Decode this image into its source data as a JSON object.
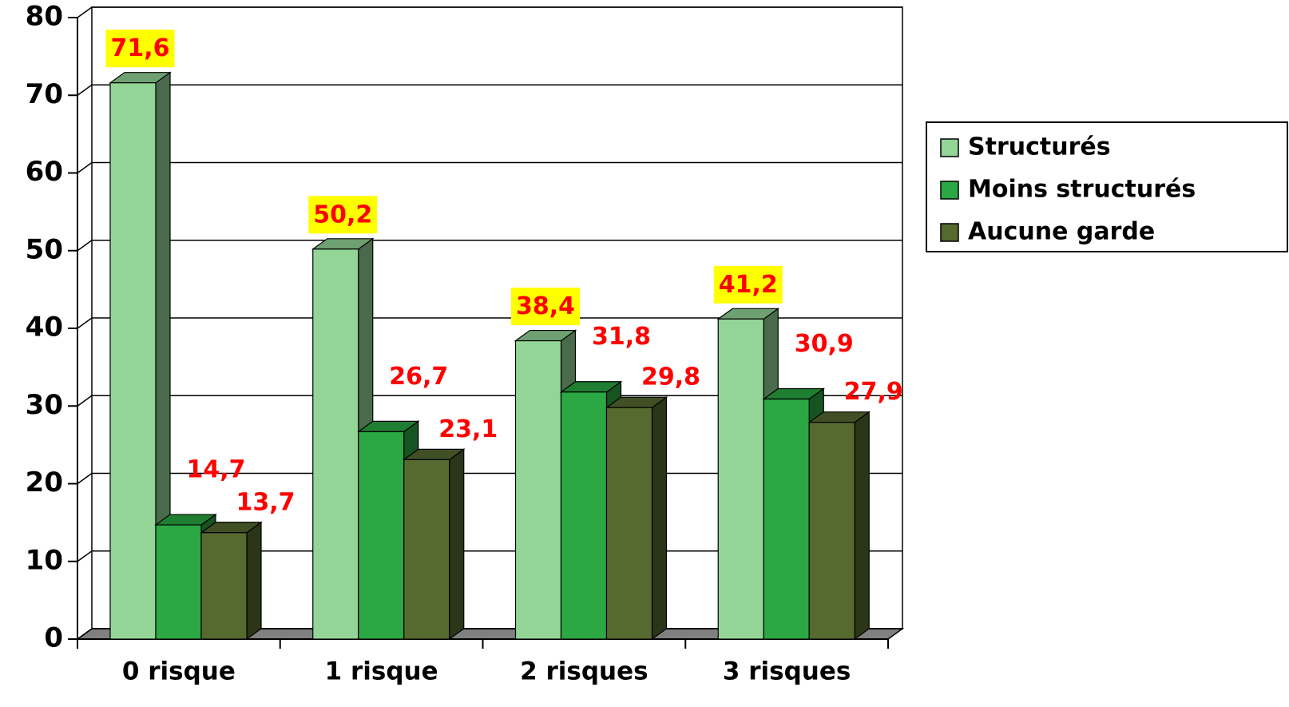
{
  "chart_data": {
    "type": "bar3d",
    "categories": [
      "0 risque",
      "1 risque",
      "2 risques",
      "3 risques"
    ],
    "series": [
      {
        "name": "Structurés",
        "color": "#93d596",
        "values": [
          71.6,
          50.2,
          38.4,
          41.2
        ],
        "value_labels": [
          "71,6",
          "50,2",
          "38,4",
          "41,2"
        ]
      },
      {
        "name": "Moins structurés",
        "color": "#2ba843",
        "values": [
          14.7,
          26.7,
          31.8,
          30.9
        ],
        "value_labels": [
          "14,7",
          "26,7",
          "31,8",
          "30,9"
        ]
      },
      {
        "name": "Aucune garde",
        "color": "#566a30",
        "values": [
          13.7,
          23.1,
          29.8,
          27.9
        ],
        "value_labels": [
          "13,7",
          "23,1",
          "29,8",
          "27,9"
        ]
      }
    ],
    "ylim": [
      0,
      80
    ],
    "yticks": [
      0,
      10,
      20,
      30,
      40,
      50,
      60,
      70,
      80
    ],
    "grid": true,
    "legend": "right"
  }
}
